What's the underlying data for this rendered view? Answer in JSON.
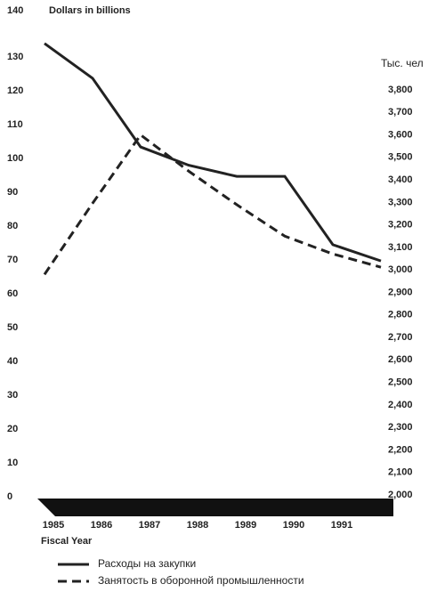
{
  "chart_data": {
    "type": "line",
    "y_label": "Dollars in billions",
    "y2_label": "Тыс. чел",
    "x_label": "Fiscal Year",
    "categories": [
      "1985",
      "1986",
      "1987",
      "1988",
      "1989",
      "1990",
      "1991",
      null
    ],
    "series": [
      {
        "name": "Расходы на закупки",
        "color": "#222222",
        "dash": false,
        "values": [
          134,
          123.7,
          103.4,
          98,
          94.7,
          94.7,
          74.5,
          69.7
        ]
      },
      {
        "name": "Занятость в оборонной промышленности",
        "color": "#222222",
        "dash": true,
        "axis": "y2",
        "values": [
          2980,
          3296,
          3600,
          3439,
          3290,
          3150,
          3071,
          3012
        ]
      }
    ],
    "ylim": [
      0,
      140
    ],
    "yticks": [
      0,
      10,
      20,
      30,
      40,
      50,
      60,
      70,
      80,
      90,
      100,
      110,
      120,
      130,
      140
    ],
    "y2lim": [
      2000,
      3800
    ],
    "y2ticks": [
      {
        "value": 2000,
        "label": "2,000"
      },
      {
        "value": 2100,
        "label": "2,100"
      },
      {
        "value": 2200,
        "label": "2,200"
      },
      {
        "value": 2300,
        "label": "2,300"
      },
      {
        "value": 2400,
        "label": "2,400"
      },
      {
        "value": 2500,
        "label": "2,500"
      },
      {
        "value": 2600,
        "label": "2,600"
      },
      {
        "value": 2700,
        "label": "2,700"
      },
      {
        "value": 2800,
        "label": "2,800"
      },
      {
        "value": 2900,
        "label": "2,900"
      },
      {
        "value": 3000,
        "label": "3,000"
      },
      {
        "value": 3100,
        "label": "3,100"
      },
      {
        "value": 3200,
        "label": "3,200"
      },
      {
        "value": 3300,
        "label": "3,300"
      },
      {
        "value": 3400,
        "label": "3,400"
      },
      {
        "value": 3500,
        "label": "3,500"
      },
      {
        "value": 3600,
        "label": "3,600"
      },
      {
        "value": 3700,
        "label": "3,700"
      },
      {
        "value": 3800,
        "label": "3,800"
      }
    ],
    "grid": false
  }
}
